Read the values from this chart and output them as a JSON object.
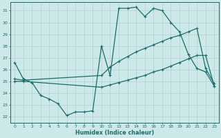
{
  "xlabel": "Humidex (Indice chaleur)",
  "background_color": "#cde8e8",
  "grid_color": "#b0d0d0",
  "line_color": "#1a6b6b",
  "xlim": [
    -0.5,
    23.5
  ],
  "ylim": [
    21.5,
    31.7
  ],
  "xticks": [
    0,
    1,
    2,
    3,
    4,
    5,
    6,
    7,
    8,
    9,
    10,
    11,
    12,
    13,
    14,
    15,
    16,
    17,
    18,
    19,
    20,
    21,
    22,
    23
  ],
  "yticks": [
    22,
    23,
    24,
    25,
    26,
    27,
    28,
    29,
    30,
    31
  ],
  "line1_x": [
    0,
    1,
    2,
    3,
    4,
    5,
    6,
    7,
    8,
    9,
    10,
    11,
    12,
    13,
    14,
    15,
    16,
    17,
    18,
    19,
    20,
    21,
    22,
    23
  ],
  "line1_y": [
    26.6,
    25.2,
    24.9,
    23.8,
    23.5,
    23.1,
    22.1,
    22.4,
    22.4,
    22.5,
    28.0,
    25.5,
    31.2,
    31.2,
    31.3,
    30.5,
    31.2,
    31.0,
    30.0,
    29.2,
    27.3,
    26.1,
    25.8,
    24.6
  ],
  "line2_x": [
    0,
    1,
    10,
    11,
    12,
    13,
    14,
    15,
    16,
    17,
    18,
    19,
    20,
    21,
    22,
    23
  ],
  "line2_y": [
    25.2,
    25.1,
    25.5,
    26.2,
    26.7,
    27.1,
    27.5,
    27.8,
    28.1,
    28.4,
    28.7,
    28.9,
    29.2,
    29.5,
    26.1,
    24.8
  ],
  "line3_x": [
    0,
    1,
    10,
    11,
    12,
    13,
    14,
    15,
    16,
    17,
    18,
    19,
    20,
    21,
    22,
    23
  ],
  "line3_y": [
    25.0,
    25.0,
    24.5,
    24.7,
    24.9,
    25.1,
    25.3,
    25.5,
    25.8,
    26.0,
    26.3,
    26.6,
    26.9,
    27.2,
    27.2,
    24.6
  ]
}
